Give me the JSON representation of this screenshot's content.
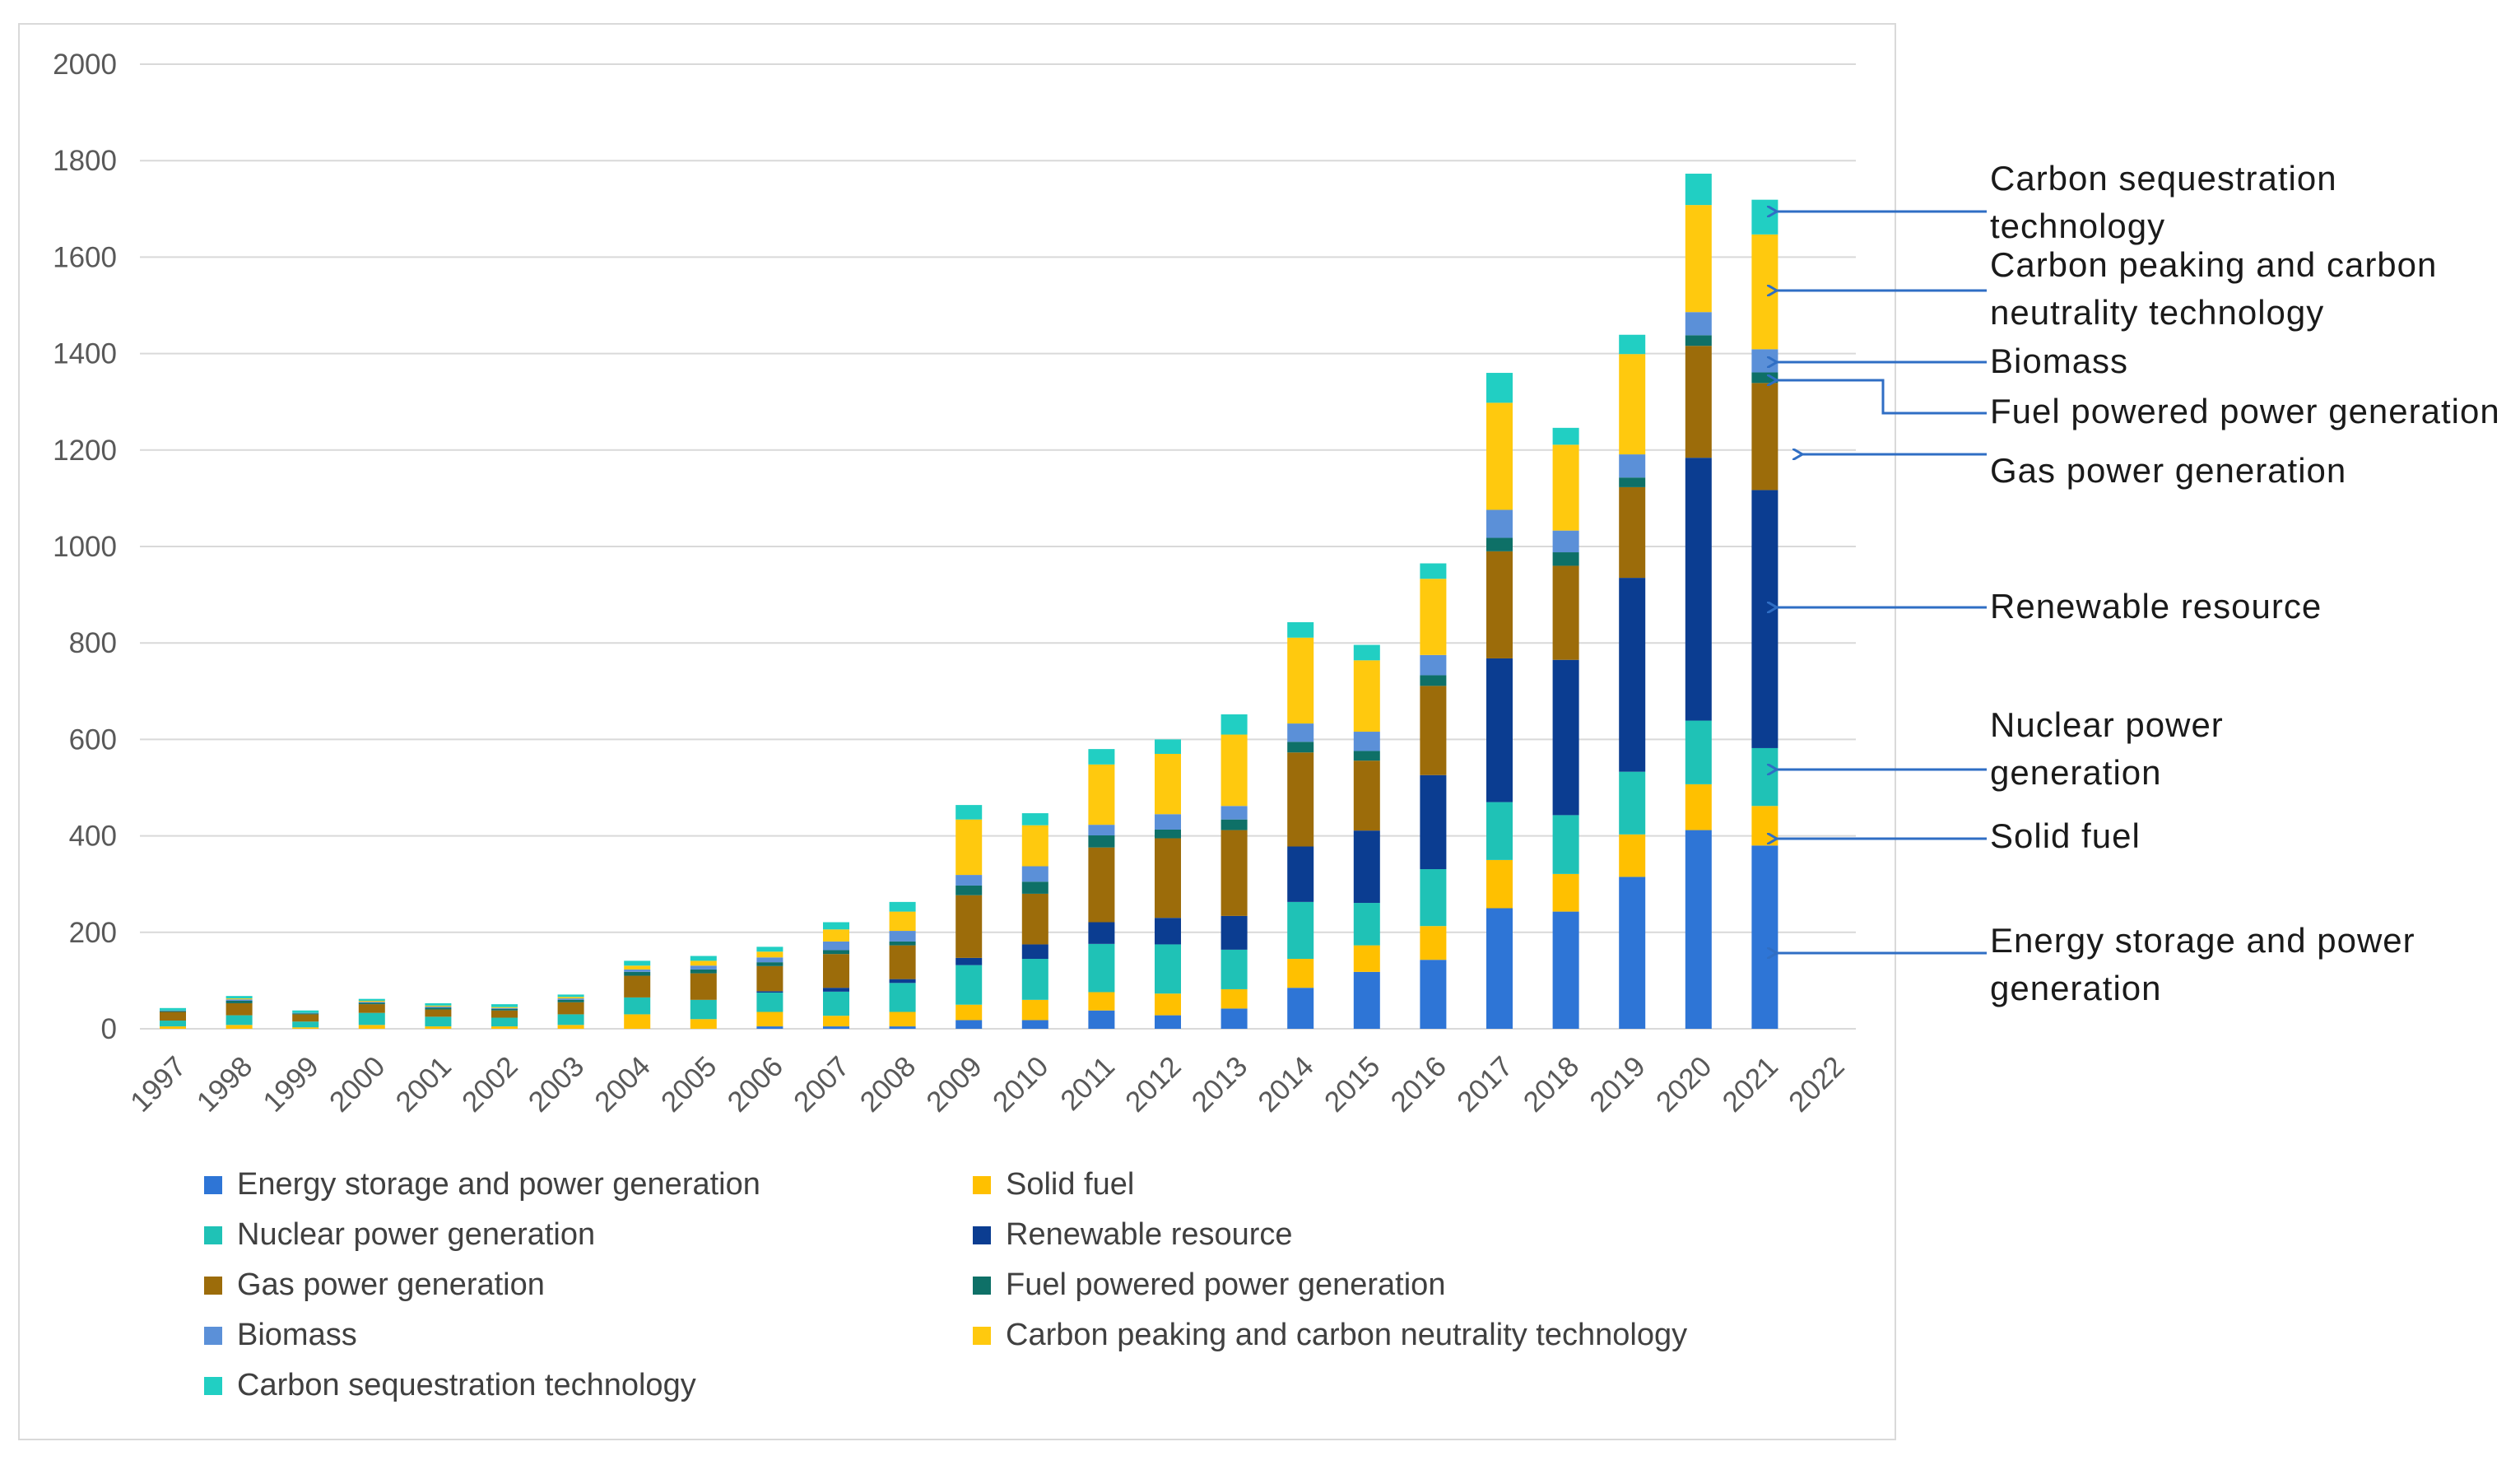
{
  "chart_data": {
    "type": "bar",
    "stacked": true,
    "ylim": [
      0,
      2000
    ],
    "yticks": [
      0,
      200,
      400,
      600,
      800,
      1000,
      1200,
      1400,
      1600,
      1800,
      2000
    ],
    "grid": true,
    "categories": [
      "1997",
      "1998",
      "1999",
      "2000",
      "2001",
      "2002",
      "2003",
      "2004",
      "2005",
      "2006",
      "2007",
      "2008",
      "2009",
      "2010",
      "2011",
      "2012",
      "2013",
      "2014",
      "2015",
      "2016",
      "2017",
      "2018",
      "2019",
      "2020",
      "2021",
      "2022"
    ],
    "series": [
      {
        "name": "Energy storage and power generation",
        "color": "#2E75D6",
        "values": [
          0,
          0,
          0,
          0,
          0,
          0,
          0,
          0,
          0,
          5,
          5,
          5,
          18,
          18,
          38,
          28,
          42,
          85,
          118,
          143,
          250,
          243,
          315,
          412,
          380,
          0
        ]
      },
      {
        "name": "Solid fuel",
        "color": "#FFC000",
        "values": [
          5,
          8,
          3,
          8,
          5,
          5,
          8,
          30,
          20,
          30,
          22,
          30,
          32,
          42,
          38,
          45,
          40,
          60,
          55,
          70,
          100,
          78,
          88,
          95,
          82,
          0
        ]
      },
      {
        "name": "Nuclear power generation",
        "color": "#1FC2B6",
        "values": [
          12,
          20,
          12,
          25,
          20,
          18,
          22,
          35,
          40,
          40,
          50,
          60,
          82,
          85,
          100,
          102,
          82,
          118,
          88,
          118,
          120,
          122,
          130,
          132,
          120,
          0
        ]
      },
      {
        "name": "Renewable resource",
        "color": "#0B3D91",
        "values": [
          0,
          0,
          0,
          0,
          0,
          0,
          0,
          0,
          0,
          3,
          8,
          8,
          15,
          30,
          45,
          55,
          70,
          115,
          150,
          195,
          298,
          322,
          402,
          545,
          535,
          0
        ]
      },
      {
        "name": "Gas power generation",
        "color": "#9C6C0A",
        "values": [
          18,
          25,
          15,
          18,
          15,
          15,
          25,
          45,
          55,
          52,
          70,
          70,
          130,
          105,
          155,
          165,
          178,
          195,
          145,
          185,
          222,
          195,
          188,
          232,
          222,
          0
        ]
      },
      {
        "name": "Fuel powered power generation",
        "color": "#0E7067",
        "values": [
          2,
          5,
          2,
          3,
          4,
          3,
          5,
          8,
          8,
          8,
          8,
          8,
          20,
          25,
          25,
          18,
          22,
          22,
          20,
          22,
          28,
          28,
          20,
          22,
          22,
          0
        ]
      },
      {
        "name": "Biomass",
        "color": "#5B90D8",
        "values": [
          1,
          3,
          1,
          2,
          2,
          2,
          3,
          5,
          8,
          10,
          18,
          22,
          22,
          32,
          22,
          32,
          28,
          38,
          40,
          42,
          58,
          45,
          48,
          48,
          48,
          0
        ]
      },
      {
        "name": "Carbon peaking and carbon neutrality technology",
        "color": "#FFC90E",
        "values": [
          0,
          2,
          0,
          2,
          2,
          2,
          3,
          8,
          10,
          12,
          25,
          40,
          115,
          85,
          125,
          125,
          148,
          178,
          148,
          158,
          222,
          178,
          208,
          222,
          238,
          0
        ]
      },
      {
        "name": "Carbon sequestration technology",
        "color": "#21CFC3",
        "values": [
          5,
          5,
          5,
          4,
          5,
          6,
          5,
          10,
          10,
          10,
          15,
          20,
          30,
          25,
          32,
          30,
          42,
          32,
          32,
          32,
          62,
          35,
          40,
          65,
          72,
          0
        ]
      }
    ]
  },
  "annotations": [
    {
      "lines": [
        "Carbon  sequestration",
        "technology"
      ]
    },
    {
      "lines": [
        "Carbon  peaking  and  carbon",
        "neutrality  technology"
      ]
    },
    {
      "lines": [
        "Biomass"
      ]
    },
    {
      "lines": [
        "Fuel  powered  power  generation"
      ]
    },
    {
      "lines": [
        "Gas  power  generation"
      ]
    },
    {
      "lines": [
        "Renewable  resource"
      ]
    },
    {
      "lines": [
        "Nuclear  power",
        "generation"
      ]
    },
    {
      "lines": [
        "Solid  fuel"
      ]
    },
    {
      "lines": [
        "Energy  storage  and  power",
        "generation"
      ]
    }
  ],
  "colors": {
    "grid": "#D9D9D9",
    "axis_text": "#595959",
    "arrow": "#2F6EC4"
  }
}
